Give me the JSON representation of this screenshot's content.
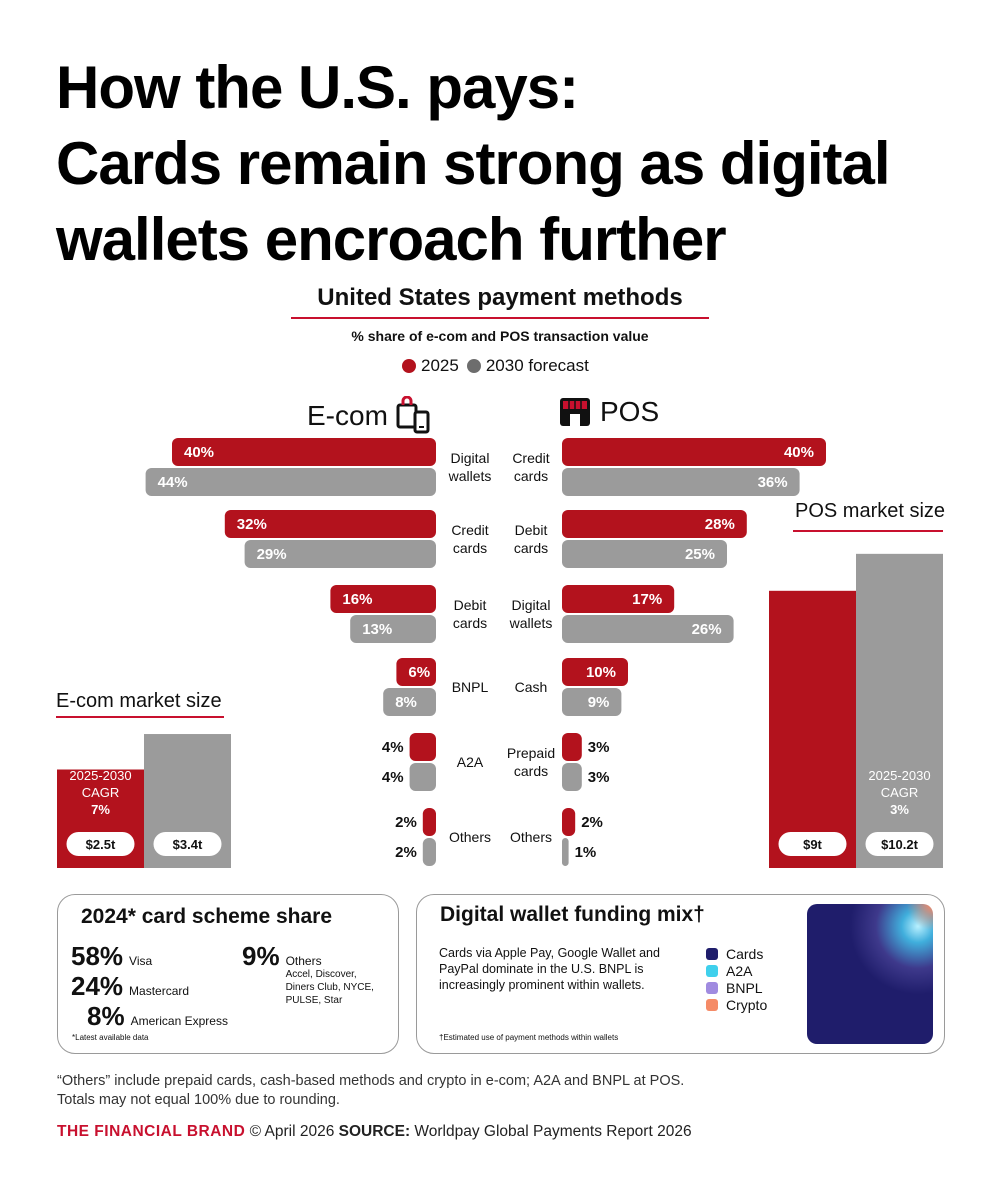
{
  "headline": [
    "How the U.S. pays:",
    "Cards remain strong as digital",
    "wallets encroach further"
  ],
  "chart_data": {
    "type": "bar",
    "title": "United States payment methods",
    "subtitle": "% share of e-com and POS transaction value",
    "legend": [
      "2025",
      "2030 forecast"
    ],
    "colors": {
      "y2025": "#b3121d",
      "y2030": "#9b9b9b"
    },
    "unit": "%",
    "ecom": {
      "label": "E-com",
      "categories": [
        "Digital wallets",
        "Credit cards",
        "Debit cards",
        "BNPL",
        "A2A",
        "Others"
      ],
      "series": [
        {
          "name": "2025",
          "values": [
            40,
            32,
            16,
            6,
            4,
            2
          ]
        },
        {
          "name": "2030 forecast",
          "values": [
            44,
            29,
            13,
            8,
            4,
            2
          ]
        }
      ]
    },
    "pos": {
      "label": "POS",
      "categories": [
        "Credit cards",
        "Debit cards",
        "Digital wallets",
        "Cash",
        "Prepaid cards",
        "Others"
      ],
      "series": [
        {
          "name": "2025",
          "values": [
            40,
            28,
            17,
            10,
            3,
            2
          ]
        },
        {
          "name": "2030 forecast",
          "values": [
            36,
            25,
            26,
            9,
            3,
            1
          ]
        }
      ]
    },
    "ecom_market_size": {
      "title": "E-com market size",
      "values": [
        2.5,
        3.4
      ],
      "labels": [
        "$2.5t",
        "$3.4t"
      ],
      "cagr_label": "2025-2030\nCAGR",
      "cagr": "7%"
    },
    "pos_market_size": {
      "title": "POS market size",
      "values": [
        9,
        10.2
      ],
      "labels": [
        "$9t",
        "$10.2t"
      ],
      "cagr_label": "2025-2030\nCAGR",
      "cagr": "3%"
    }
  },
  "card_scheme": {
    "title": "2024* card scheme share",
    "items": [
      {
        "pct": "58%",
        "name": "Visa"
      },
      {
        "pct": "24%",
        "name": "Mastercard"
      },
      {
        "pct": "8%",
        "name": "American Express"
      }
    ],
    "others": {
      "pct": "9%",
      "name": "Others",
      "detail": "Accel, Discover,\nDiners Club, NYCE,\nPULSE, Star"
    },
    "note": "*Latest available data"
  },
  "wallet_mix": {
    "title": "Digital wallet funding mix†",
    "text": "Cards via Apple Pay, Google Wallet and PayPal  dominate in the U.S. BNPL is increasingly prominent within wallets.",
    "legend": [
      {
        "name": "Cards",
        "color": "#1f1d6b"
      },
      {
        "name": "A2A",
        "color": "#3fd0ec"
      },
      {
        "name": "BNPL",
        "color": "#a08be0"
      },
      {
        "name": "Crypto",
        "color": "#f58b67"
      }
    ],
    "note": "†Estimated use of payment methods within wallets"
  },
  "footnote": [
    "“Others” include prepaid cards, cash-based methods and crypto in e-com; A2A and BNPL at POS.",
    "Totals may not equal 100% due to rounding."
  ],
  "footer": {
    "brand": "THE FINANCIAL BRAND",
    "date": "© April 2026",
    "source_label": "SOURCE:",
    "source": "Worldpay Global Payments Report 2026"
  }
}
